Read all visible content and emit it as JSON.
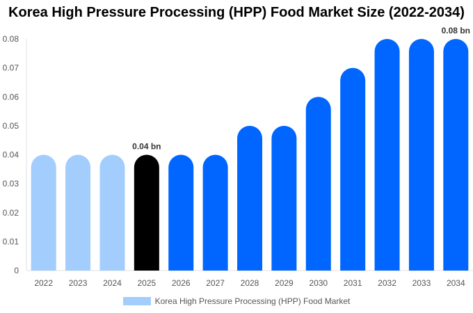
{
  "chart_data": {
    "type": "bar",
    "title": "Korea High Pressure Processing (HPP) Food Market Size (2022-2034)",
    "categories": [
      "2022",
      "2023",
      "2024",
      "2025",
      "2026",
      "2027",
      "2028",
      "2029",
      "2030",
      "2031",
      "2032",
      "2033",
      "2034"
    ],
    "series": [
      {
        "name": "Korea High Pressure Processing (HPP) Food Market",
        "values": [
          0.04,
          0.04,
          0.04,
          0.04,
          0.04,
          0.04,
          0.05,
          0.05,
          0.06,
          0.07,
          0.08,
          0.08,
          0.08
        ]
      }
    ],
    "bar_colors": [
      "#a3cdfd",
      "#a3cdfd",
      "#a3cdfd",
      "#000000",
      "#0066ff",
      "#0066ff",
      "#0066ff",
      "#0066ff",
      "#0066ff",
      "#0066ff",
      "#0066ff",
      "#0066ff",
      "#0066ff"
    ],
    "legend_color": "#a3cdfd",
    "yticks": [
      "0",
      "0.01",
      "0.02",
      "0.03",
      "0.04",
      "0.05",
      "0.06",
      "0.07",
      "0.08"
    ],
    "ylim": [
      0,
      0.08
    ],
    "data_labels": [
      {
        "category": "2025",
        "text": "0.04 bn"
      },
      {
        "category": "2034",
        "text": "0.08 bn"
      }
    ],
    "legend_position": "bottom",
    "grid": false
  }
}
